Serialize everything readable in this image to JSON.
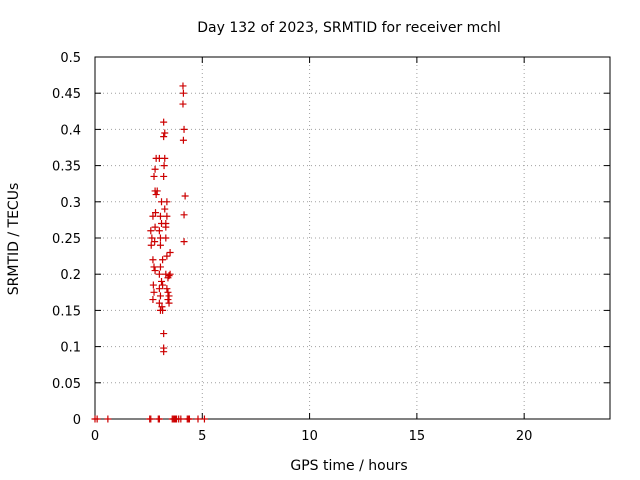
{
  "chart_data": {
    "type": "scatter",
    "title": "Day 132 of 2023, SRMTID for receiver mchl",
    "xlabel": "GPS time / hours",
    "ylabel": "SRMTID / TECUs",
    "xlim": [
      0,
      24
    ],
    "ylim": [
      0,
      0.5
    ],
    "xticks": [
      0,
      5,
      10,
      15,
      20
    ],
    "xtick_labels": [
      "0",
      "5",
      "10",
      "15",
      "20"
    ],
    "yticks": [
      0,
      0.05,
      0.1,
      0.15,
      0.2,
      0.25,
      0.3,
      0.35,
      0.4,
      0.45,
      0.5
    ],
    "ytick_labels": [
      "0",
      "0.05",
      "0.1",
      "0.15",
      "0.2",
      "0.25",
      "0.3",
      "0.35",
      "0.4",
      "0.45",
      "0.5"
    ],
    "grid": true,
    "legend": "none",
    "marker": "plus",
    "color": "#cc0000",
    "points": [
      [
        0.0,
        0
      ],
      [
        0.1,
        0
      ],
      [
        0.6,
        0
      ],
      [
        2.55,
        0
      ],
      [
        2.6,
        0
      ],
      [
        2.95,
        0
      ],
      [
        3.0,
        0
      ],
      [
        3.6,
        0
      ],
      [
        3.65,
        0
      ],
      [
        3.7,
        0
      ],
      [
        3.75,
        0
      ],
      [
        3.8,
        0
      ],
      [
        3.9,
        0
      ],
      [
        4.0,
        0
      ],
      [
        4.3,
        0
      ],
      [
        4.35,
        0
      ],
      [
        4.4,
        0
      ],
      [
        4.8,
        0
      ],
      [
        5.1,
        0
      ],
      [
        2.6,
        0.26
      ],
      [
        2.65,
        0.25
      ],
      [
        2.62,
        0.24
      ],
      [
        2.7,
        0.28
      ],
      [
        2.7,
        0.22
      ],
      [
        2.72,
        0.185
      ],
      [
        2.75,
        0.175
      ],
      [
        2.7,
        0.165
      ],
      [
        2.75,
        0.21
      ],
      [
        2.8,
        0.205
      ],
      [
        2.78,
        0.245
      ],
      [
        2.8,
        0.265
      ],
      [
        2.82,
        0.285
      ],
      [
        2.85,
        0.31
      ],
      [
        2.8,
        0.315
      ],
      [
        2.75,
        0.335
      ],
      [
        2.8,
        0.345
      ],
      [
        2.85,
        0.36
      ],
      [
        2.9,
        0.315
      ],
      [
        3.0,
        0.18
      ],
      [
        3.0,
        0.16
      ],
      [
        3.05,
        0.15
      ],
      [
        3.05,
        0.17
      ],
      [
        3.0,
        0.2
      ],
      [
        3.05,
        0.21
      ],
      [
        3.05,
        0.24
      ],
      [
        3.05,
        0.25
      ],
      [
        3.0,
        0.26
      ],
      [
        3.05,
        0.28
      ],
      [
        3.0,
        0.36
      ],
      [
        3.1,
        0.3
      ],
      [
        3.1,
        0.27
      ],
      [
        3.15,
        0.22
      ],
      [
        3.1,
        0.19
      ],
      [
        3.15,
        0.185
      ],
      [
        3.12,
        0.155
      ],
      [
        3.15,
        0.15
      ],
      [
        3.2,
        0.118
      ],
      [
        3.2,
        0.098
      ],
      [
        3.2,
        0.093
      ],
      [
        3.2,
        0.335
      ],
      [
        3.22,
        0.35
      ],
      [
        3.25,
        0.36
      ],
      [
        3.2,
        0.39
      ],
      [
        3.25,
        0.395
      ],
      [
        3.2,
        0.41
      ],
      [
        3.25,
        0.29
      ],
      [
        3.3,
        0.27
      ],
      [
        3.3,
        0.265
      ],
      [
        3.3,
        0.25
      ],
      [
        3.35,
        0.225
      ],
      [
        3.3,
        0.2
      ],
      [
        3.4,
        0.195
      ],
      [
        3.35,
        0.18
      ],
      [
        3.4,
        0.175
      ],
      [
        3.45,
        0.17
      ],
      [
        3.4,
        0.165
      ],
      [
        3.45,
        0.16
      ],
      [
        3.45,
        0.198
      ],
      [
        3.5,
        0.2
      ],
      [
        3.5,
        0.23
      ],
      [
        3.35,
        0.3
      ],
      [
        3.35,
        0.28
      ],
      [
        4.1,
        0.46
      ],
      [
        4.12,
        0.45
      ],
      [
        4.1,
        0.435
      ],
      [
        4.15,
        0.4
      ],
      [
        4.12,
        0.385
      ],
      [
        4.2,
        0.308
      ],
      [
        4.15,
        0.282
      ],
      [
        4.15,
        0.245
      ]
    ]
  }
}
